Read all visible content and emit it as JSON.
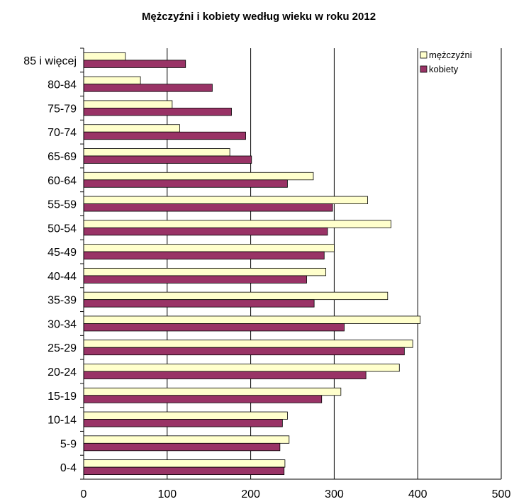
{
  "chart_data": {
    "type": "bar",
    "orientation": "horizontal",
    "title": "Mężczyźni i kobiety według wieku w roku 2012",
    "xlabel": "",
    "ylabel": "",
    "xlim": [
      0,
      500
    ],
    "x_ticks": [
      "0",
      "100",
      "200",
      "300",
      "400",
      "500"
    ],
    "grid": "vertical",
    "legend_position": "top-right",
    "categories": [
      "85 i więcej",
      "80-84",
      "75-79",
      "70-74",
      "65-69",
      "60-64",
      "55-59",
      "50-54",
      "45-49",
      "40-44",
      "35-39",
      "30-34",
      "25-29",
      "20-24",
      "15-19",
      "10-14",
      "5-9",
      "0-4"
    ],
    "series": [
      {
        "name": "mężczyźni",
        "color": "#FFFFCC",
        "values": [
          50,
          68,
          106,
          115,
          175,
          275,
          340,
          368,
          300,
          290,
          364,
          403,
          394,
          378,
          308,
          244,
          246,
          241
        ]
      },
      {
        "name": "kobiety",
        "color": "#993366",
        "values": [
          122,
          154,
          177,
          194,
          201,
          244,
          298,
          292,
          288,
          267,
          276,
          312,
          384,
          338,
          285,
          238,
          235,
          240
        ]
      }
    ]
  }
}
